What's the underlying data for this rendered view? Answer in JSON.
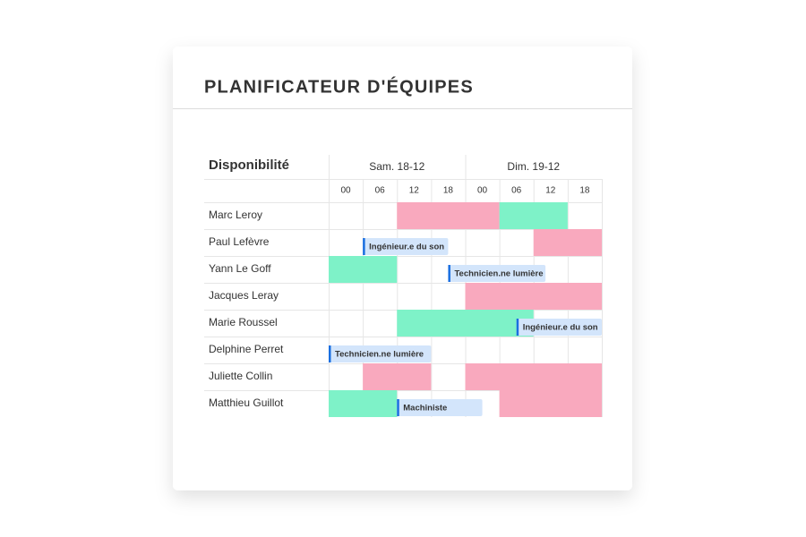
{
  "header": {
    "title": "PLANIFICATEUR D'ÉQUIPES"
  },
  "schedule": {
    "column_title": "Disponibilité",
    "days": [
      {
        "label": "Sam. 18-12",
        "span": 4
      },
      {
        "label": "Dim. 19-12",
        "span": 4
      }
    ],
    "hours": [
      "00",
      "06",
      "12",
      "18",
      "00",
      "06",
      "12",
      "18"
    ],
    "rows": [
      {
        "name": "Marc Leroy",
        "blocks": [
          {
            "start": 2,
            "end": 5,
            "color": "#f9a9be"
          },
          {
            "start": 5,
            "end": 7,
            "color": "#7ef2c8"
          }
        ],
        "tags": []
      },
      {
        "name": "Paul Lefèvre",
        "blocks": [
          {
            "start": 6,
            "end": 8,
            "color": "#f9a9be"
          }
        ],
        "tags": [
          {
            "start": 1,
            "end": 3.5,
            "label": "Ingénieur.e du son"
          }
        ]
      },
      {
        "name": "Yann Le Goff",
        "blocks": [
          {
            "start": 0,
            "end": 2,
            "color": "#7ef2c8"
          }
        ],
        "tags": [
          {
            "start": 3.5,
            "end": 6.35,
            "label": "Technicien.ne lumière"
          }
        ]
      },
      {
        "name": "Jacques Leray",
        "blocks": [
          {
            "start": 4,
            "end": 8,
            "color": "#f9a9be"
          }
        ],
        "tags": []
      },
      {
        "name": "Marie Roussel",
        "blocks": [
          {
            "start": 2,
            "end": 6,
            "color": "#7ef2c8"
          }
        ],
        "tags": [
          {
            "start": 5.5,
            "end": 8,
            "label": "Ingénieur.e du son"
          }
        ]
      },
      {
        "name": "Delphine Perret",
        "blocks": [],
        "tags": [
          {
            "start": 0,
            "end": 3,
            "label": "Technicien.ne lumière"
          }
        ]
      },
      {
        "name": "Juliette Collin",
        "blocks": [
          {
            "start": 1,
            "end": 3,
            "color": "#f9a9be"
          },
          {
            "start": 4,
            "end": 8,
            "color": "#f9a9be"
          }
        ],
        "tags": []
      },
      {
        "name": "Matthieu Guillot",
        "blocks": [
          {
            "start": 0,
            "end": 2,
            "color": "#7ef2c8"
          },
          {
            "start": 5,
            "end": 8,
            "color": "#f9a9be"
          }
        ],
        "tags": [
          {
            "start": 2,
            "end": 4.5,
            "label": "Machiniste"
          }
        ]
      }
    ]
  }
}
